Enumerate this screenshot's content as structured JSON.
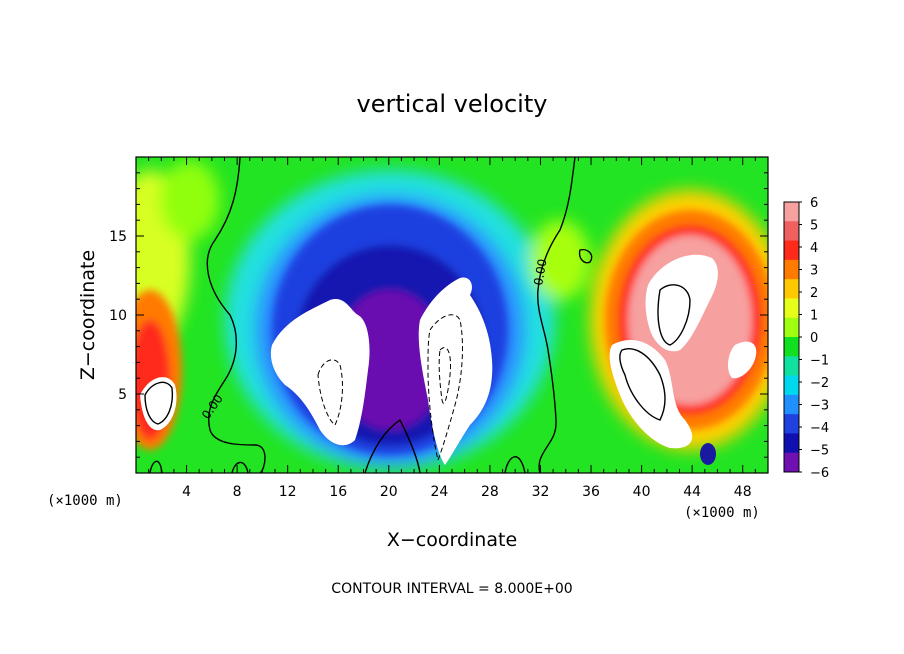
{
  "chart_data": {
    "type": "heatmap",
    "title": "vertical velocity",
    "xlabel": "X−coordinate",
    "ylabel": "Z−coordinate",
    "x_unit": "(×1000 m)",
    "y_unit": "(×1000 m)",
    "xlim": [
      0,
      50
    ],
    "ylim": [
      0,
      20
    ],
    "x_ticks": [
      "4",
      "8",
      "12",
      "16",
      "20",
      "24",
      "28",
      "32",
      "36",
      "40",
      "44",
      "48"
    ],
    "y_ticks": [
      "5",
      "10",
      "15"
    ],
    "colorbar": {
      "range": [
        -6,
        6
      ],
      "tick_labels": [
        "6",
        "5",
        "4",
        "3",
        "2",
        "1",
        "0",
        "−1",
        "−2",
        "−3",
        "−4",
        "−5",
        "−6"
      ],
      "colors": [
        "#f7a0a0",
        "#f06060",
        "#ff2a1a",
        "#ff7a00",
        "#ffc800",
        "#e6ff1a",
        "#a0ff10",
        "#10e020",
        "#10e0a0",
        "#00d8f0",
        "#2090ff",
        "#2040e0",
        "#1010b0",
        "#7010b0"
      ]
    },
    "contour_labels": [
      "0.00",
      "0.00"
    ],
    "note": "CONTOUR INTERVAL = 8.000E+00"
  }
}
